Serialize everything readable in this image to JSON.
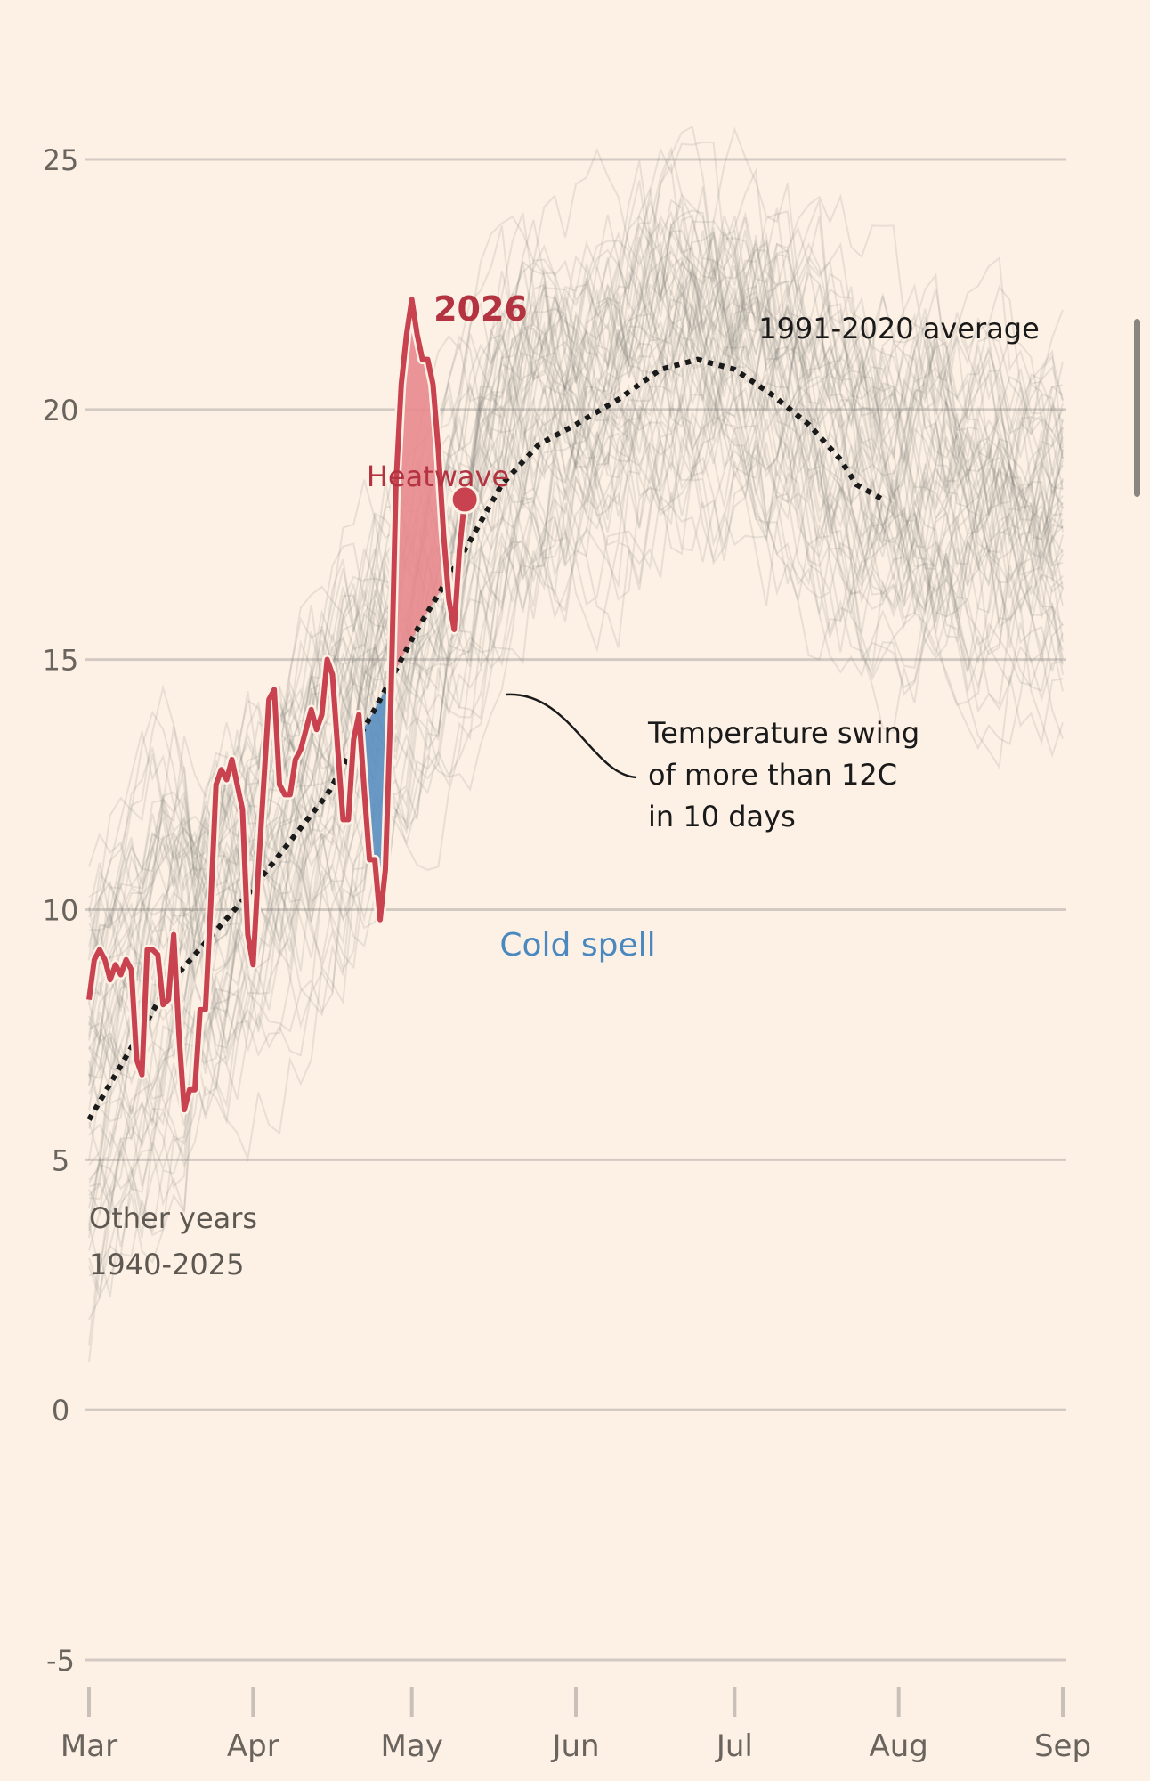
{
  "chart_data": {
    "type": "line",
    "ylim": [
      -5,
      25
    ],
    "y_ticks": [
      "25",
      "20",
      "15",
      "10",
      "5",
      "0",
      "-5"
    ],
    "y_tick_values": [
      25,
      20,
      15,
      10,
      5,
      0,
      -5
    ],
    "x_ticks": [
      "Mar",
      "Apr",
      "May",
      "Jun",
      "Jul",
      "Aug",
      "Sep"
    ],
    "grid": true,
    "series": [
      {
        "name": "2026",
        "color": "#c8434f",
        "points": [
          [
            0,
            8.2
          ],
          [
            1,
            9.0
          ],
          [
            2,
            9.2
          ],
          [
            3,
            9.0
          ],
          [
            4,
            8.6
          ],
          [
            5,
            8.9
          ],
          [
            6,
            8.7
          ],
          [
            7,
            9.0
          ],
          [
            8,
            8.8
          ],
          [
            9,
            7.0
          ],
          [
            10,
            6.7
          ],
          [
            11,
            9.2
          ],
          [
            12,
            9.2
          ],
          [
            13,
            9.1
          ],
          [
            14,
            8.1
          ],
          [
            15,
            8.2
          ],
          [
            16,
            9.5
          ],
          [
            17,
            7.5
          ],
          [
            18,
            6.0
          ],
          [
            19,
            6.4
          ],
          [
            20,
            6.4
          ],
          [
            21,
            8.0
          ],
          [
            22,
            8.0
          ],
          [
            23,
            10.1
          ],
          [
            24,
            12.5
          ],
          [
            25,
            12.8
          ],
          [
            26,
            12.6
          ],
          [
            27,
            13.0
          ],
          [
            28,
            12.5
          ],
          [
            29,
            12.0
          ],
          [
            30,
            9.5
          ],
          [
            31,
            8.9
          ],
          [
            32,
            10.8
          ],
          [
            33,
            12.5
          ],
          [
            34,
            14.2
          ],
          [
            35,
            14.4
          ],
          [
            36,
            12.5
          ],
          [
            37,
            12.3
          ],
          [
            38,
            12.3
          ],
          [
            39,
            13.0
          ],
          [
            40,
            13.2
          ],
          [
            41,
            13.6
          ],
          [
            42,
            14.0
          ],
          [
            43,
            13.6
          ],
          [
            44,
            13.9
          ],
          [
            45,
            15.0
          ],
          [
            46,
            14.7
          ],
          [
            47,
            13.2
          ],
          [
            48,
            11.8
          ],
          [
            49,
            11.8
          ],
          [
            50,
            13.4
          ],
          [
            51,
            13.9
          ],
          [
            52,
            12.4
          ],
          [
            53,
            11.0
          ],
          [
            54,
            11.0
          ],
          [
            55,
            9.8
          ],
          [
            56,
            10.8
          ],
          [
            57,
            14.0
          ],
          [
            58,
            18.5
          ],
          [
            59,
            20.5
          ],
          [
            60,
            21.5
          ],
          [
            61,
            22.2
          ],
          [
            62,
            21.5
          ],
          [
            63,
            21.0
          ],
          [
            64,
            21.0
          ],
          [
            65,
            20.5
          ],
          [
            66,
            19.2
          ],
          [
            67,
            17.5
          ],
          [
            68,
            16.2
          ],
          [
            69,
            15.6
          ],
          [
            70,
            17.2
          ],
          [
            71,
            18.2
          ]
        ]
      },
      {
        "name": "1991-2020 average",
        "color": "#1a1a1a",
        "points": [
          [
            0,
            5.8
          ],
          [
            15,
            8.5
          ],
          [
            30,
            10.3
          ],
          [
            45,
            12.3
          ],
          [
            55,
            14.2
          ],
          [
            62,
            15.6
          ],
          [
            70,
            17.0
          ],
          [
            78,
            18.5
          ],
          [
            85,
            19.3
          ],
          [
            92,
            19.7
          ],
          [
            100,
            20.2
          ],
          [
            108,
            20.8
          ],
          [
            115,
            21.0
          ],
          [
            122,
            20.8
          ],
          [
            129,
            20.3
          ],
          [
            136,
            19.7
          ],
          [
            142,
            19.0
          ],
          [
            145,
            18.5
          ],
          [
            150,
            18.2
          ]
        ]
      }
    ],
    "band_years": "1940-2025",
    "annotations": {
      "label_2026": "2026",
      "label_average": "1991-2020 average",
      "label_heatwave": "Heatwave",
      "label_cold_spell": "Cold spell",
      "label_swing_1": "Temperature swing",
      "label_swing_2": "of more than 12C",
      "label_swing_3": "in 10 days",
      "label_other_1": "Other years",
      "label_other_2": "1940-2025"
    }
  },
  "colors": {
    "background": "#fdf1e5",
    "gridline": "#d8d0c8",
    "axis_text": "#66605a",
    "red": "#c8434f",
    "blue": "#4a88c0",
    "black": "#1a1a1a",
    "other_years": "#8c8782"
  }
}
